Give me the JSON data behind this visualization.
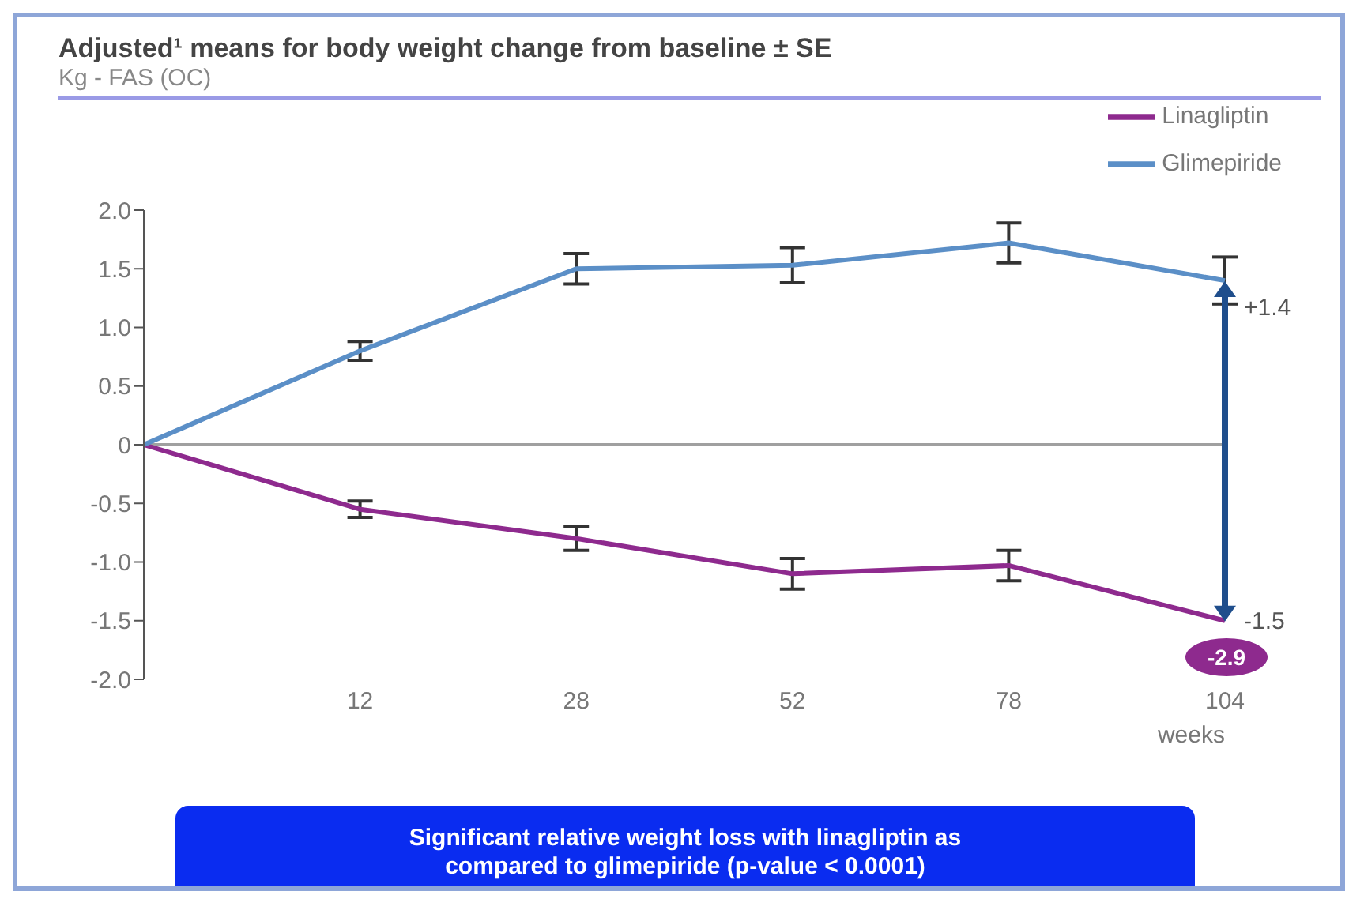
{
  "chart_data": {
    "type": "line",
    "title": "Adjusted¹ means for body weight change from baseline ± SE",
    "subtitle": "Kg - FAS (OC)",
    "xlabel": "weeks",
    "categories": [
      null,
      "12",
      "28",
      "52",
      "78",
      "104"
    ],
    "series": [
      {
        "name": "Linagliptin",
        "color": "#8e2a8e",
        "values": [
          0,
          -0.55,
          -0.8,
          -1.1,
          -1.03,
          -1.5
        ],
        "errors": [
          null,
          0.07,
          0.1,
          0.13,
          0.13,
          null
        ]
      },
      {
        "name": "Glimepiride",
        "color": "#5b8fc7",
        "values": [
          0,
          0.8,
          1.5,
          1.53,
          1.72,
          1.4
        ],
        "errors": [
          null,
          0.08,
          0.13,
          0.15,
          0.17,
          0.2
        ]
      }
    ],
    "ylim": [
      -2,
      2
    ],
    "yticks": [
      {
        "value": -2,
        "label": "-2.0"
      },
      {
        "value": -1.5,
        "label": "-1.5"
      },
      {
        "value": -1,
        "label": "-1.0"
      },
      {
        "value": -0.5,
        "label": "-0.5"
      },
      0,
      {
        "value": 0.5,
        "label": "0.5"
      },
      {
        "value": 1,
        "label": "1.0"
      },
      {
        "value": 1.5,
        "label": "1.5"
      },
      {
        "value": 2,
        "label": "2.0"
      }
    ],
    "ref_lines": [
      {
        "axis": "y",
        "value": 0,
        "color": "#a0a0a0"
      }
    ],
    "annotations": [
      {
        "text": "+1.4",
        "x": "104",
        "y": 1.4
      },
      {
        "text": "-1.5",
        "x": "104",
        "y": -1.5
      },
      "-2.9",
      "Significant relative weight loss with linagliptin as compared to glimepiride (p-value < 0.0001)"
    ],
    "grid": false,
    "legend": "top right",
    "marker": "none",
    "line_style": "solid"
  }
}
